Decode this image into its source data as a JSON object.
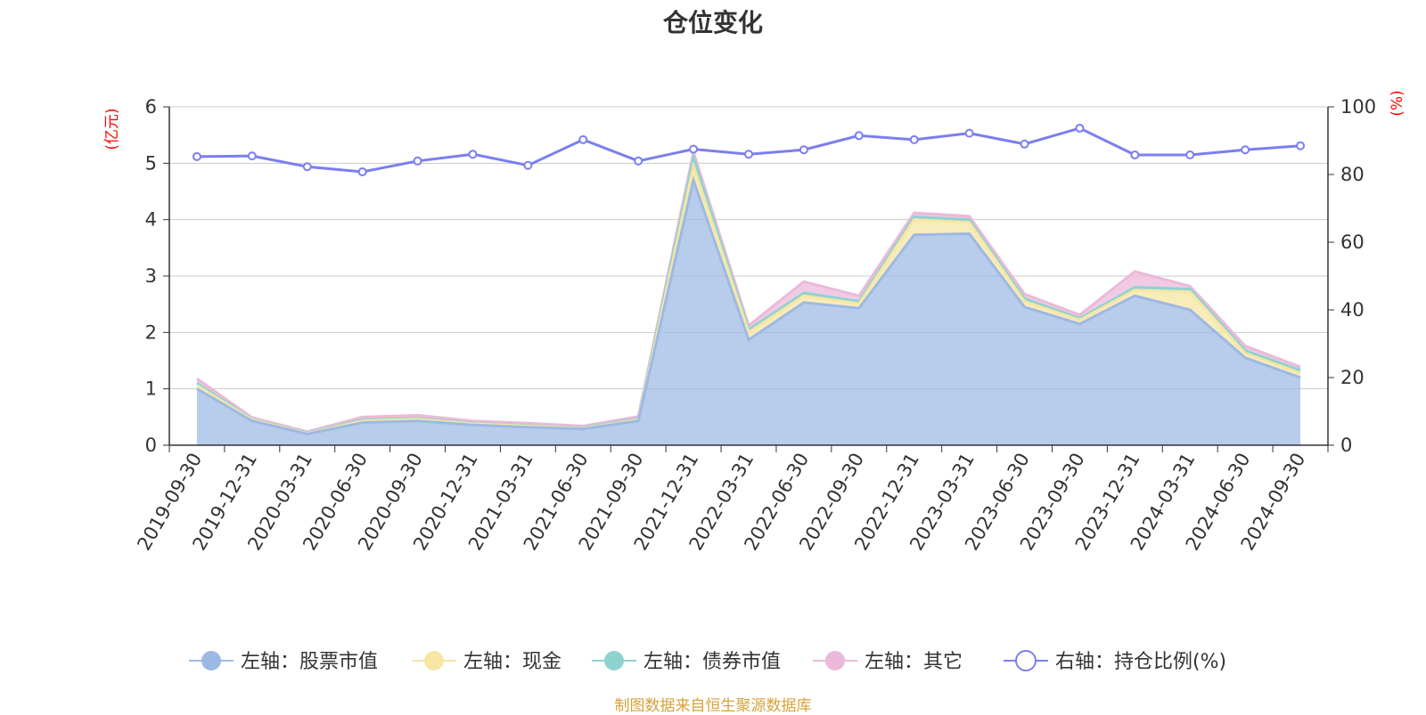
{
  "chart_data": {
    "type": "area",
    "title": "仓位变化",
    "left_axis_unit": "(亿元)",
    "right_axis_unit": "(%)",
    "left_ylim": [
      0,
      6
    ],
    "left_ticks": [
      "0",
      "1",
      "2",
      "3",
      "4",
      "5",
      "6"
    ],
    "right_ylim": [
      0,
      100
    ],
    "right_ticks": [
      "0",
      "20",
      "40",
      "60",
      "80",
      "100"
    ],
    "categories": [
      "2019-09-30",
      "2019-12-31",
      "2020-03-31",
      "2020-06-30",
      "2020-09-30",
      "2020-12-31",
      "2021-03-31",
      "2021-06-30",
      "2021-09-30",
      "2021-12-31",
      "2022-03-31",
      "2022-06-30",
      "2022-09-30",
      "2022-12-31",
      "2023-03-31",
      "2023-06-30",
      "2023-09-30",
      "2023-12-31",
      "2024-03-31",
      "2024-06-30",
      "2024-09-30"
    ],
    "stacked_series": [
      {
        "name": "左轴：股票市值",
        "axis": "left",
        "color": "#9db9e3",
        "values": [
          1.0,
          0.43,
          0.2,
          0.4,
          0.43,
          0.36,
          0.32,
          0.29,
          0.43,
          4.7,
          1.87,
          2.53,
          2.43,
          3.73,
          3.75,
          2.45,
          2.15,
          2.65,
          2.4,
          1.55,
          1.2
        ]
      },
      {
        "name": "左轴：现金",
        "axis": "left",
        "color": "#f7e6a4",
        "values": [
          0.06,
          0.02,
          0.01,
          0.03,
          0.03,
          0.02,
          0.02,
          0.01,
          0.02,
          0.25,
          0.13,
          0.12,
          0.08,
          0.27,
          0.2,
          0.1,
          0.07,
          0.1,
          0.32,
          0.08,
          0.08
        ]
      },
      {
        "name": "左轴：债券市值",
        "axis": "left",
        "color": "#8fd3d1",
        "values": [
          0.04,
          0.01,
          0.01,
          0.02,
          0.02,
          0.01,
          0.01,
          0.01,
          0.02,
          0.15,
          0.05,
          0.05,
          0.04,
          0.05,
          0.05,
          0.05,
          0.03,
          0.05,
          0.05,
          0.05,
          0.05
        ]
      },
      {
        "name": "左轴：其它",
        "axis": "left",
        "color": "#ebb9da",
        "values": [
          0.08,
          0.03,
          0.02,
          0.05,
          0.05,
          0.04,
          0.04,
          0.03,
          0.04,
          0.1,
          0.07,
          0.2,
          0.1,
          0.07,
          0.06,
          0.08,
          0.06,
          0.28,
          0.05,
          0.08,
          0.06
        ]
      }
    ],
    "line_series": {
      "name": "右轴：持仓比例(%)",
      "axis": "right",
      "color": "#7b7ef0",
      "values": [
        85.3,
        85.5,
        82.3,
        80.8,
        84,
        86,
        82.7,
        90.3,
        84,
        87.5,
        86,
        87.3,
        91.5,
        90.3,
        92.2,
        89,
        93.7,
        85.8,
        85.8,
        87.3,
        88.5
      ]
    },
    "footer_text": "制图数据来自恒生聚源数据库",
    "footer_color": "#d6a23a",
    "unit_color": "#ff0000"
  }
}
